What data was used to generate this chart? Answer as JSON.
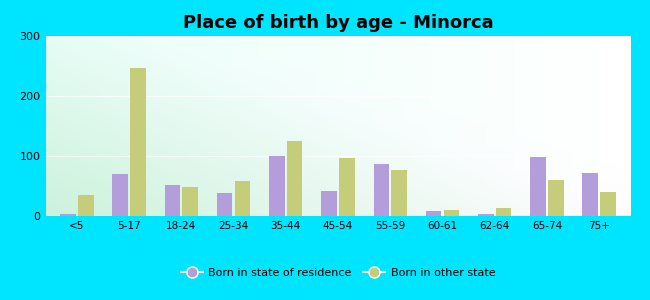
{
  "title": "Place of birth by age - Minorca",
  "categories": [
    "<5",
    "5-17",
    "18-24",
    "25-34",
    "35-44",
    "45-54",
    "55-59",
    "60-61",
    "62-64",
    "65-74",
    "75+"
  ],
  "born_in_state": [
    3,
    70,
    52,
    38,
    100,
    42,
    87,
    8,
    3,
    98,
    72
  ],
  "born_other_state": [
    35,
    247,
    48,
    58,
    125,
    97,
    77,
    10,
    13,
    60,
    40
  ],
  "color_state": "#b39ddb",
  "color_other": "#c5cc7a",
  "background_outer": "#00e5ff",
  "ylim": [
    0,
    300
  ],
  "yticks": [
    0,
    100,
    200,
    300
  ],
  "legend_state_label": "Born in state of residence",
  "legend_other_label": "Born in other state",
  "title_fontsize": 13,
  "bar_width": 0.3,
  "bar_spacing": 0.04
}
